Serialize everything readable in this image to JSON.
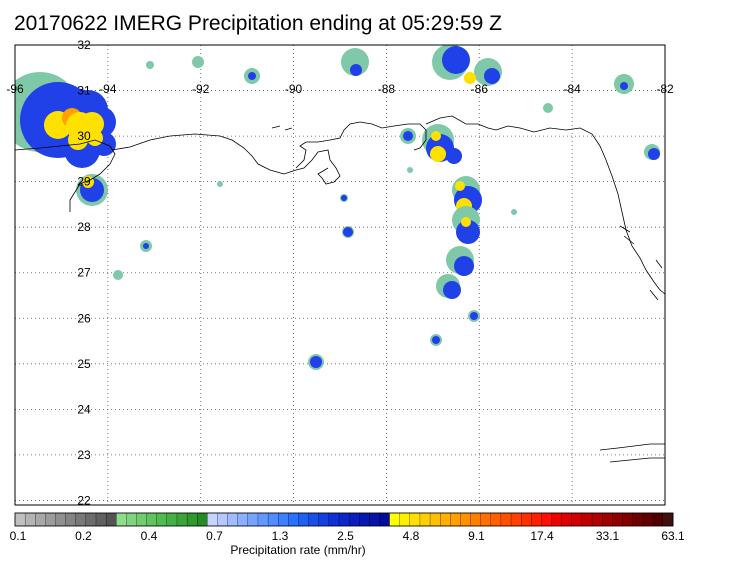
{
  "title": "20170622 IMERG Precipitation ending at 05:29:59 Z",
  "map": {
    "lon_ticks": [
      "-96",
      "-94",
      "-92",
      "-90",
      "-88",
      "-86",
      "-84",
      "-82"
    ],
    "lat_ticks": [
      "32",
      "31",
      "30",
      "29",
      "28",
      "27",
      "26",
      "25",
      "24",
      "23",
      "22"
    ],
    "lon_range": [
      -96,
      -82
    ],
    "lat_range": [
      21.9,
      32
    ],
    "grid": "dotted",
    "coastline_color": "#000000"
  },
  "colorbar": {
    "title": "Precipitation rate (mm/hr)",
    "tick_labels": [
      "0.1",
      "0.2",
      "0.4",
      "0.7",
      "1.3",
      "2.5",
      "4.8",
      "9.1",
      "17.4",
      "33.1",
      "63.1"
    ],
    "colors": [
      "#c0c0c0",
      "#b4b4b4",
      "#a8a8a8",
      "#9c9c9c",
      "#909090",
      "#848484",
      "#787878",
      "#6c6c6c",
      "#606060",
      "#545454",
      "#8fdc8f",
      "#80d480",
      "#70cc70",
      "#60c460",
      "#50bc50",
      "#45b045",
      "#3aa43a",
      "#2f982f",
      "#248c24",
      "#c8d4ff",
      "#b4c8ff",
      "#a0bcff",
      "#8cb0ff",
      "#78a4ff",
      "#6498ff",
      "#508cff",
      "#3c80ff",
      "#2a70ff",
      "#2060f0",
      "#1a50e8",
      "#1540e0",
      "#1030d8",
      "#0c26cc",
      "#0a1ec0",
      "#0818b4",
      "#0612a8",
      "#040c9c",
      "#ffff00",
      "#fff000",
      "#ffe000",
      "#ffd000",
      "#ffc000",
      "#ffb000",
      "#ffa000",
      "#ff9000",
      "#ff8000",
      "#ff7000",
      "#ff6000",
      "#ff5000",
      "#ff4000",
      "#ff3000",
      "#ff2000",
      "#ff1000",
      "#f00000",
      "#e00000",
      "#d00000",
      "#c00000",
      "#b00000",
      "#a00000",
      "#900000",
      "#800000",
      "#700000",
      "#600000",
      "#500000",
      "#401010"
    ]
  }
}
